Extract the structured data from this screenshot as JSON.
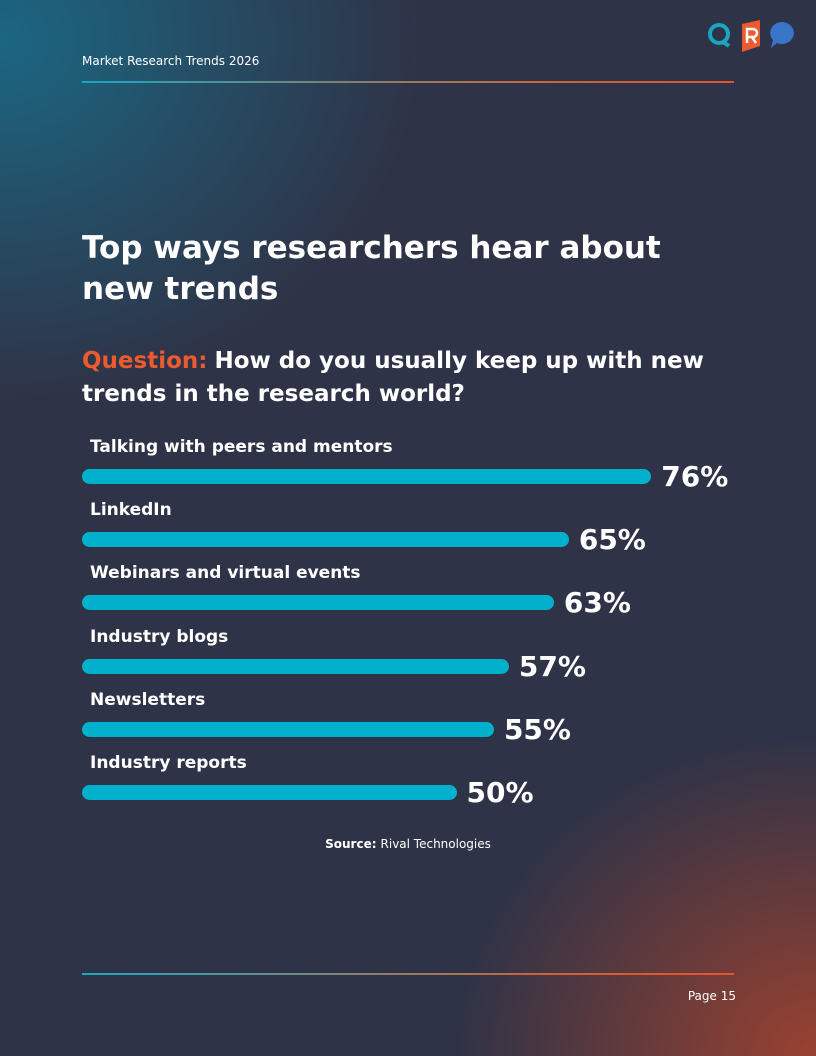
{
  "header": {
    "title": "Market Research Trends 2026"
  },
  "title": "Top ways researchers hear about new trends",
  "question": {
    "label": "Question:",
    "text": "How do you usually keep up with new trends in the research world?"
  },
  "chart_data": {
    "type": "bar",
    "orientation": "horizontal",
    "categories": [
      "Talking with peers and mentors",
      "LinkedIn",
      "Webinars and virtual events",
      "Industry blogs",
      "Newsletters",
      "Industry reports"
    ],
    "values": [
      76,
      65,
      63,
      57,
      55,
      50
    ],
    "value_labels": [
      "76%",
      "65%",
      "63%",
      "57%",
      "55%",
      "50%"
    ],
    "color": "#00b0cc"
  },
  "source": {
    "label": "Source:",
    "text": "Rival Technologies"
  },
  "footer": {
    "page": "Page 15"
  }
}
